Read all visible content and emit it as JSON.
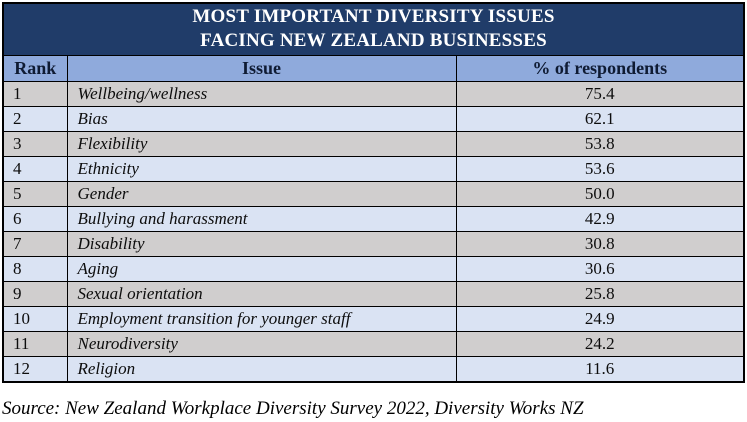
{
  "title": {
    "line1": "MOST IMPORTANT DIVERSITY ISSUES",
    "line2": "FACING NEW ZEALAND BUSINESSES"
  },
  "columns": {
    "rank": "Rank",
    "issue": "Issue",
    "percent": "% of respondents"
  },
  "source": "Source: New Zealand Workplace Diversity Survey 2022, Diversity Works NZ",
  "colors": {
    "title_bg": "#203c69",
    "title_text": "#ffffff",
    "header_bg": "#8faadc",
    "row_gray": "#d0cece",
    "row_blue": "#dae3f3",
    "border": "#000000"
  },
  "chart_data": {
    "type": "table",
    "title": "MOST IMPORTANT DIVERSITY ISSUES FACING NEW ZEALAND BUSINESSES",
    "columns": [
      "Rank",
      "Issue",
      "% of respondents"
    ],
    "rows": [
      {
        "rank": "1",
        "issue": "Wellbeing/wellness",
        "percent": "75.4"
      },
      {
        "rank": "2",
        "issue": "Bias",
        "percent": "62.1"
      },
      {
        "rank": "3",
        "issue": "Flexibility",
        "percent": "53.8"
      },
      {
        "rank": "4",
        "issue": "Ethnicity",
        "percent": "53.6"
      },
      {
        "rank": "5",
        "issue": "Gender",
        "percent": "50.0"
      },
      {
        "rank": "6",
        "issue": "Bullying and harassment",
        "percent": "42.9"
      },
      {
        "rank": "7",
        "issue": "Disability",
        "percent": "30.8"
      },
      {
        "rank": "8",
        "issue": "Aging",
        "percent": "30.6"
      },
      {
        "rank": "9",
        "issue": "Sexual orientation",
        "percent": "25.8"
      },
      {
        "rank": "10",
        "issue": "Employment transition for younger staff",
        "percent": "24.9"
      },
      {
        "rank": "11",
        "issue": "Neurodiversity",
        "percent": "24.2"
      },
      {
        "rank": "12",
        "issue": "Religion",
        "percent": "11.6"
      }
    ],
    "source": "Source: New Zealand Workplace Diversity Survey 2022, Diversity Works NZ"
  }
}
